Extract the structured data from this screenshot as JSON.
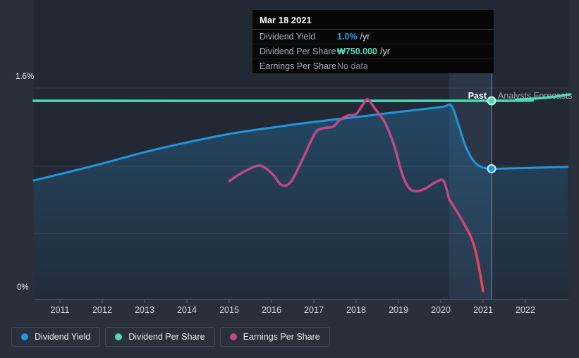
{
  "tooltip": {
    "title": "Mar 18 2021",
    "rows": [
      {
        "label": "Dividend Yield",
        "value": "1.0%",
        "unit": "/yr",
        "value_color": "#2da0e8",
        "muted": false
      },
      {
        "label": "Dividend Per Share",
        "value": "₩750.000",
        "unit": "/yr",
        "value_color": "#52dcbc",
        "muted": false
      },
      {
        "label": "Earnings Per Share",
        "value": "No data",
        "unit": "",
        "value_color": "#7c838e",
        "muted": true
      }
    ]
  },
  "chart_data": {
    "type": "line",
    "ylim": [
      0,
      1.6
    ],
    "ytick_labels": [
      "1.6%",
      "0%"
    ],
    "grid_values": [
      1.6,
      1.008,
      0.5
    ],
    "x_ticks": [
      "2011",
      "2012",
      "2013",
      "2014",
      "2015",
      "2016",
      "2017",
      "2018",
      "2019",
      "2020",
      "2021",
      "2022"
    ],
    "past_label": "Past",
    "forecast_label": "Analysts Forecasts",
    "divider_year": 2021.2,
    "highlight_band_years": [
      2020.2,
      2021.2
    ],
    "series": [
      {
        "name": "Dividend Yield",
        "color": "#2296dc",
        "unit": "%",
        "area_fill": true,
        "points": [
          [
            2010.38,
            0.901
          ],
          [
            2011,
            0.949
          ],
          [
            2012,
            1.029
          ],
          [
            2013,
            1.115
          ],
          [
            2014,
            1.189
          ],
          [
            2015,
            1.253
          ],
          [
            2016,
            1.301
          ],
          [
            2017,
            1.344
          ],
          [
            2018,
            1.381
          ],
          [
            2019,
            1.419
          ],
          [
            2020,
            1.456
          ],
          [
            2020.25,
            1.467
          ],
          [
            2020.42,
            1.32
          ],
          [
            2020.6,
            1.15
          ],
          [
            2020.8,
            1.04
          ],
          [
            2021.0,
            0.998
          ],
          [
            2021.2,
            0.99
          ],
          [
            2021.6,
            0.992
          ],
          [
            2022.2,
            0.997
          ],
          [
            2023.0,
            1.005
          ]
        ]
      },
      {
        "name": "Dividend Per Share",
        "color": "#4cd9b8",
        "unit": "₩",
        "area_fill": false,
        "points": [
          [
            2010.38,
            1.504
          ],
          [
            2021.2,
            1.504
          ],
          [
            2021.8,
            1.513
          ],
          [
            2022.5,
            1.528
          ],
          [
            2023.05,
            1.552
          ]
        ]
      },
      {
        "name": "Earnings Per Share",
        "color": "#c14788",
        "negative_color": "#e2494f",
        "unit": "relative",
        "area_fill": false,
        "points": [
          [
            2015.0,
            0.896
          ],
          [
            2015.25,
            0.949
          ],
          [
            2015.62,
            1.008
          ],
          [
            2015.82,
            1.003
          ],
          [
            2016.05,
            0.939
          ],
          [
            2016.25,
            0.864
          ],
          [
            2016.47,
            0.896
          ],
          [
            2016.75,
            1.072
          ],
          [
            2017.03,
            1.259
          ],
          [
            2017.22,
            1.296
          ],
          [
            2017.45,
            1.307
          ],
          [
            2017.6,
            1.355
          ],
          [
            2017.8,
            1.392
          ],
          [
            2018.0,
            1.403
          ],
          [
            2018.15,
            1.472
          ],
          [
            2018.27,
            1.515
          ],
          [
            2018.43,
            1.451
          ],
          [
            2018.68,
            1.339
          ],
          [
            2018.9,
            1.163
          ],
          [
            2019.1,
            0.939
          ],
          [
            2019.27,
            0.837
          ],
          [
            2019.47,
            0.821
          ],
          [
            2019.68,
            0.848
          ],
          [
            2019.9,
            0.891
          ],
          [
            2020.07,
            0.896
          ],
          [
            2020.2,
            0.757
          ]
        ],
        "tail_points": [
          [
            2020.2,
            0.757
          ],
          [
            2020.33,
            0.693
          ],
          [
            2020.47,
            0.619
          ],
          [
            2020.6,
            0.544
          ],
          [
            2020.72,
            0.469
          ],
          [
            2020.82,
            0.368
          ],
          [
            2020.92,
            0.213
          ],
          [
            2021.0,
            0.064
          ]
        ]
      }
    ],
    "markers": [
      {
        "series": "Dividend Yield",
        "year": 2021.2,
        "value": 0.99,
        "color": "#2296dc"
      },
      {
        "series": "Dividend Per Share",
        "year": 2021.2,
        "value": 1.504,
        "color": "#4cd9b8"
      }
    ]
  },
  "legend": {
    "items": [
      {
        "label": "Dividend Yield",
        "color": "#2296dc"
      },
      {
        "label": "Dividend Per Share",
        "color": "#4cd9b8"
      },
      {
        "label": "Earnings Per Share",
        "color": "#c14788"
      }
    ]
  },
  "colors": {
    "background": "#292f3b",
    "plot_background": "#232934",
    "grid": "rgba(255,255,255,0.08)",
    "axis": "#5a6372",
    "tick_label": "#d5dae0",
    "band": "rgba(104,150,200,0.13)",
    "divider": "rgba(125,165,210,0.55)",
    "past_label_color": "#ffffff",
    "forecast_label_color": "#99a1ac"
  }
}
